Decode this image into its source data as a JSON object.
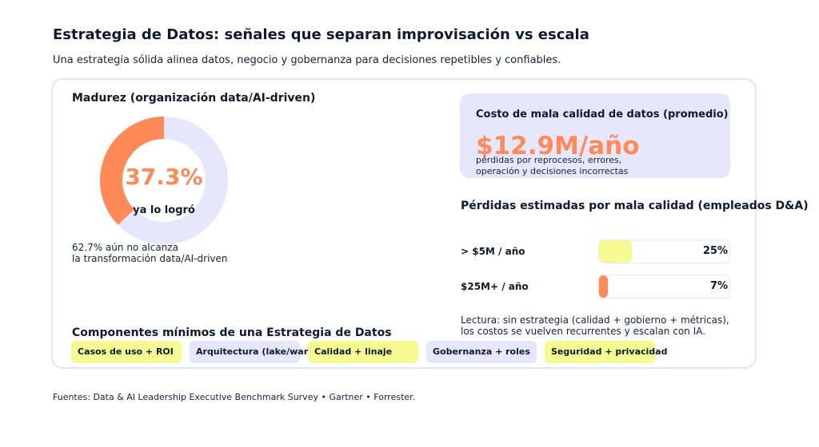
{
  "header": {
    "title": "Estrategia de Datos: señales que separan improvisación vs escala",
    "subtitle": "Una estrategia sólida alinea datos, negocio y gobernanza para decisiones repetibles y confiables."
  },
  "maturity": {
    "title": "Madurez (organización data/AI-driven)",
    "achieved_pct": 37.3,
    "achieved_label": "37.3%",
    "achieved_caption": "ya lo logró",
    "note_line1": "62.7% aún no alcanza",
    "note_line2": "la transformación data/AI-driven",
    "colors": {
      "achieved": "#ff8a57",
      "remaining": "#e6e7fc"
    }
  },
  "kpi": {
    "label": "Costo de mala calidad de datos (promedio)",
    "value": "$12.9M/año",
    "note_line1": "pérdidas por reprocesos, errores,",
    "note_line2": "operación y decisiones incorrectas"
  },
  "losses": {
    "title": "Pérdidas estimadas por mala calidad (empleados D&A)",
    "rows": [
      {
        "label": "> $5M / año",
        "pct_label": "25%",
        "value": 25,
        "color": "#f6fb91"
      },
      {
        "label": "$25M+ / año",
        "pct_label": "7%",
        "value": 7,
        "color": "#ff8a57"
      }
    ],
    "reading_line1": "Lectura: sin estrategia (calidad + gobierno + métricas),",
    "reading_line2": "los costos se vuelven recurrentes y escalan con IA."
  },
  "components": {
    "title": "Componentes mínimos de una Estrategia de Datos",
    "chips": [
      {
        "label": "Casos de uso + ROI"
      },
      {
        "label": "Arquitectura (lake/warehouse)"
      },
      {
        "label": "Calidad + linaje"
      },
      {
        "label": "Gobernanza + roles"
      },
      {
        "label": "Seguridad + privacidad"
      }
    ]
  },
  "footer": {
    "sources": "Fuentes: Data & AI Leadership Executive Benchmark Survey • Gartner • Forrester."
  }
}
